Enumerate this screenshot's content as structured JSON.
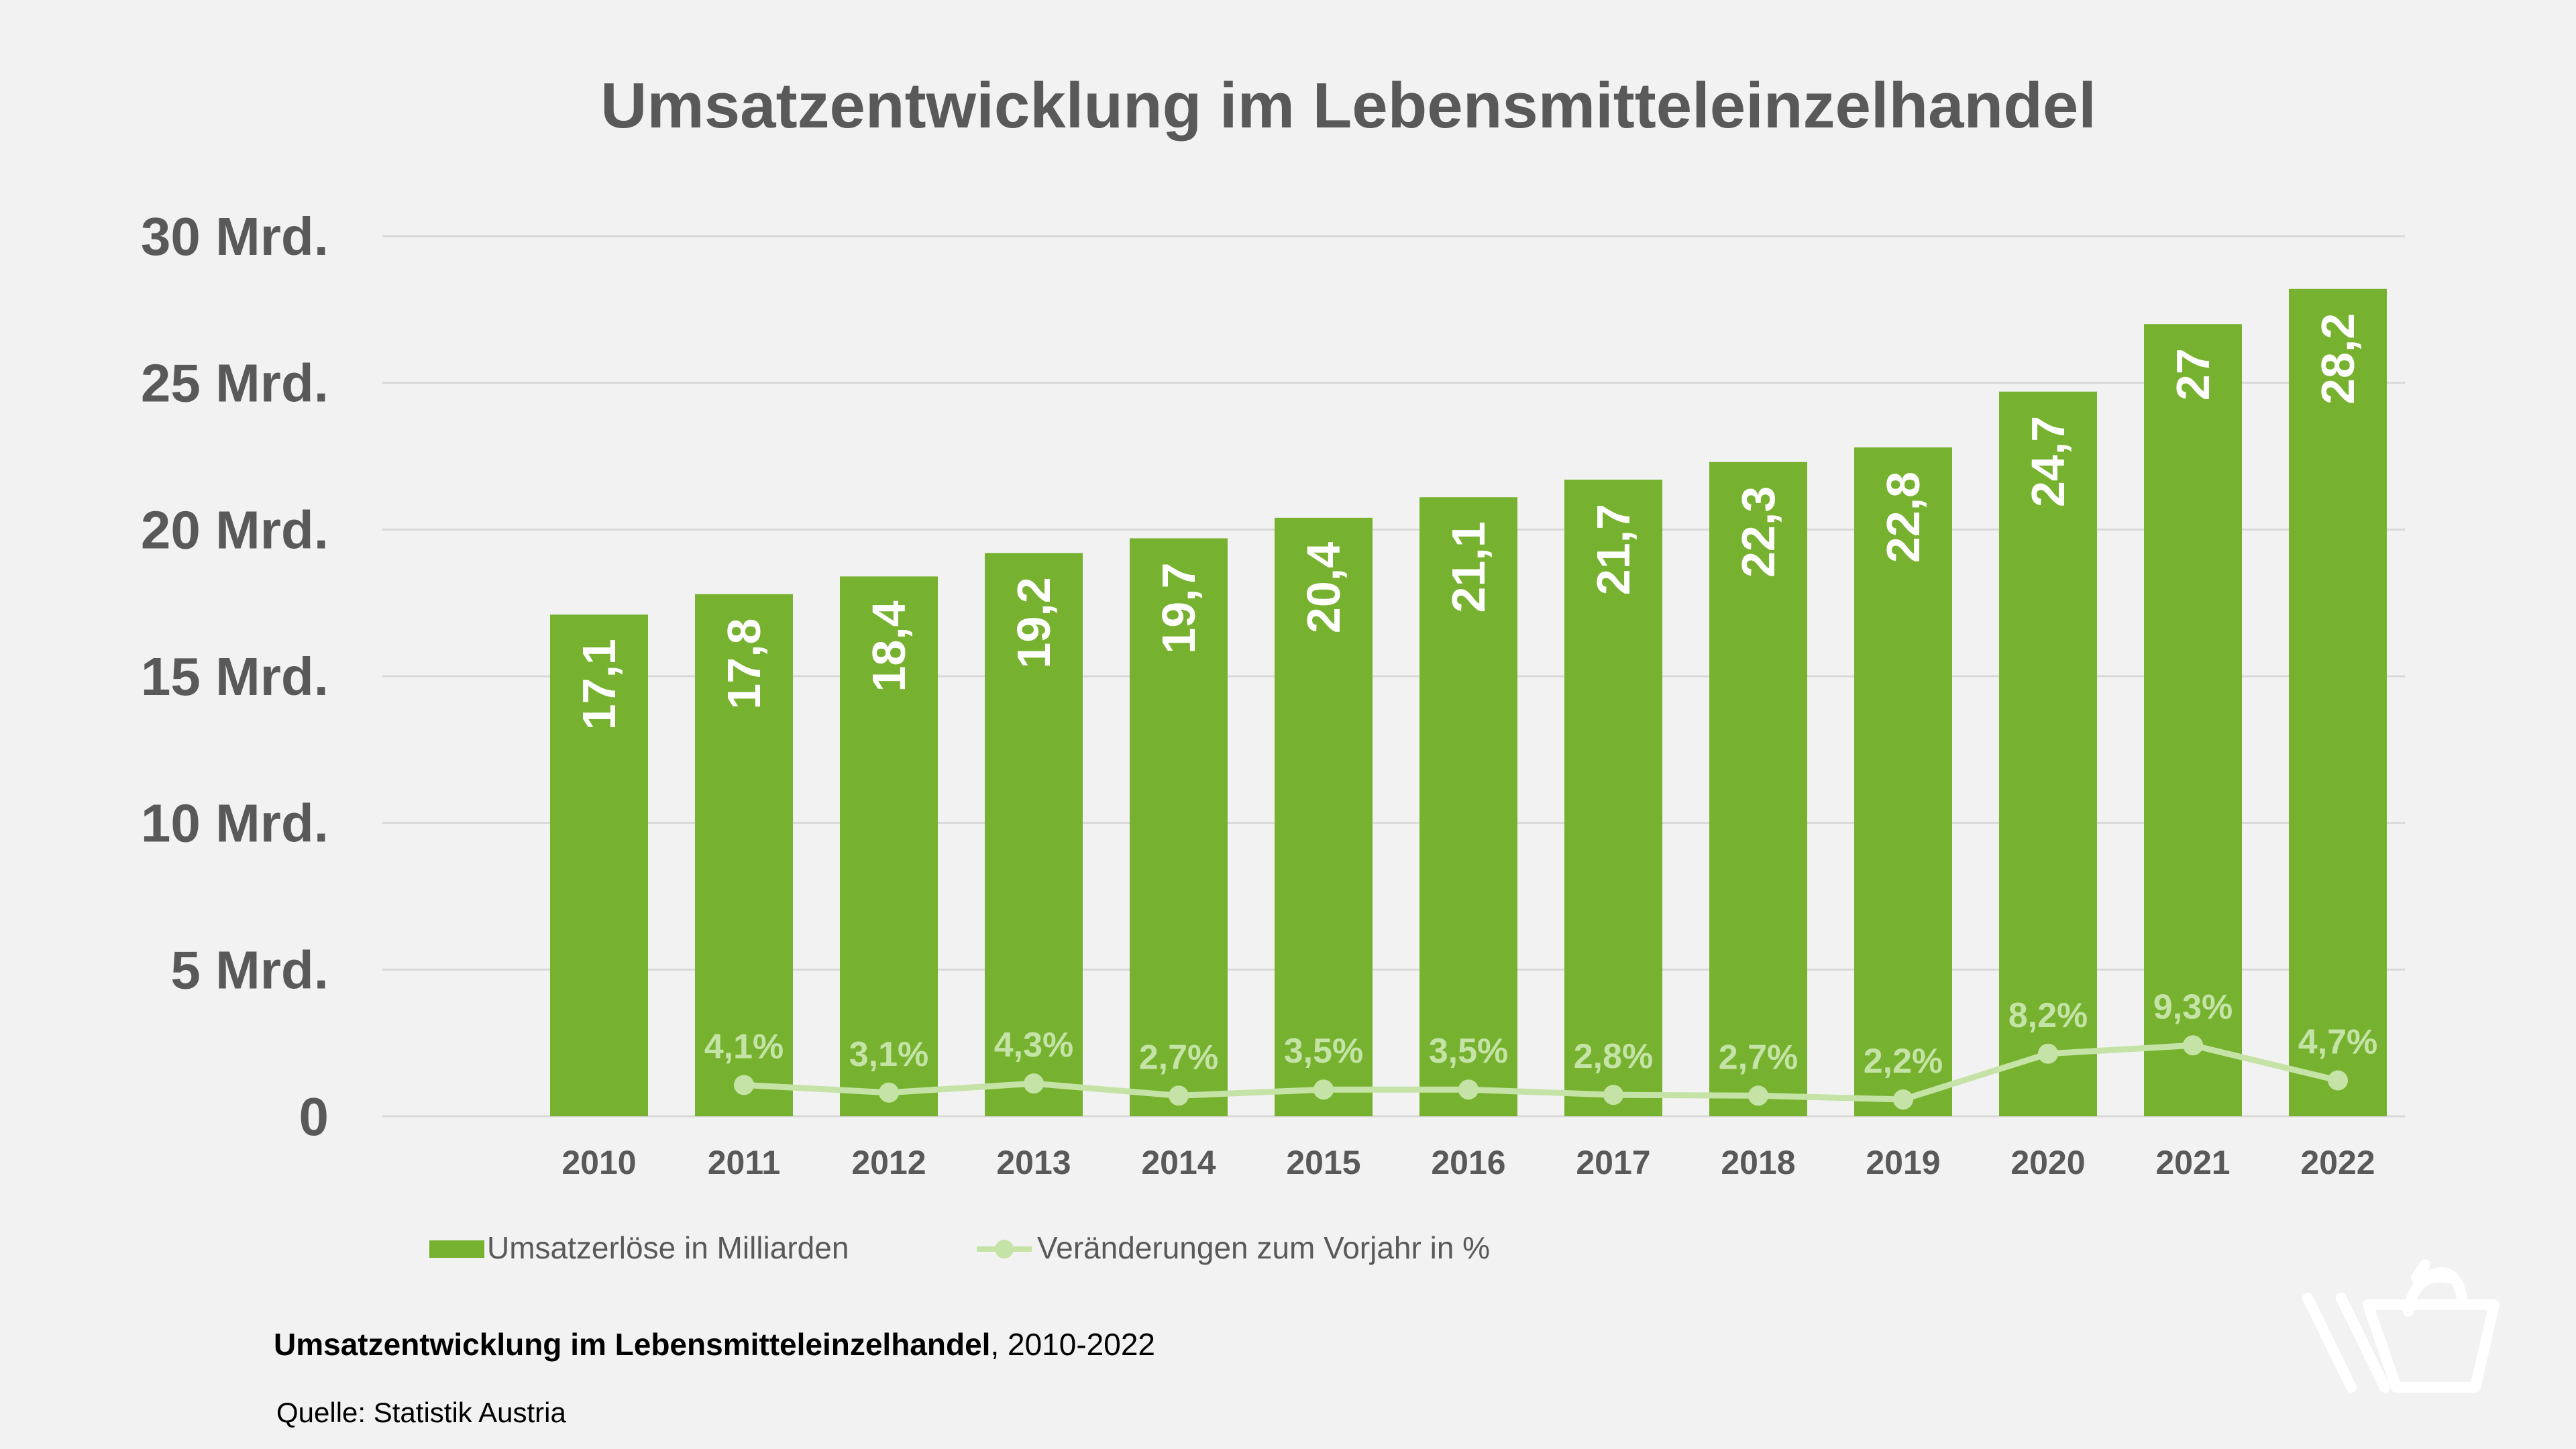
{
  "colors": {
    "bar": "#76b22f",
    "line": "#c5e3a6",
    "grid": "#d9d9d9",
    "axis_text": "#595959",
    "background": "#f2f2f2"
  },
  "legend": {
    "bars_label": "Umsatzerlöse in Milliarden",
    "line_label": "Veränderungen zum Vorjahr in %"
  },
  "caption": {
    "title_bold": "Umsatzentwicklung im Lebensmitteleinzelhandel",
    "title_rest": ", 2010-2022",
    "source": "Quelle: Statistik Austria"
  },
  "logo_icon": "shopping-basket-icon",
  "chart_data": {
    "type": "bar",
    "title": "Umsatzentwicklung im Lebensmitteleinzelhandel",
    "categories": [
      "2010",
      "2011",
      "2012",
      "2013",
      "2014",
      "2015",
      "2016",
      "2017",
      "2018",
      "2019",
      "2020",
      "2021",
      "2022"
    ],
    "ylim": [
      0,
      30
    ],
    "yticks": [
      0,
      5,
      10,
      15,
      20,
      25,
      30
    ],
    "ytick_labels": [
      "0",
      "5 Mrd.",
      "10 Mrd.",
      "15 Mrd.",
      "20 Mrd.",
      "25 Mrd.",
      "30 Mrd."
    ],
    "grid": true,
    "legend_position": "bottom-left",
    "series": [
      {
        "name": "Umsatzerlöse in Milliarden",
        "type": "bar",
        "values": [
          17.1,
          17.8,
          18.4,
          19.2,
          19.7,
          20.4,
          21.1,
          21.7,
          22.3,
          22.8,
          24.7,
          27,
          28.2
        ],
        "labels": [
          "17,1",
          "17,8",
          "18,4",
          "19,2",
          "19,7",
          "20,4",
          "21,1",
          "21,7",
          "22,3",
          "22,8",
          "24,7",
          "27",
          "28,2"
        ]
      },
      {
        "name": "Veränderungen zum Vorjahr in %",
        "type": "line",
        "values": [
          null,
          4.1,
          3.1,
          4.3,
          2.7,
          3.5,
          3.5,
          2.8,
          2.7,
          2.2,
          8.2,
          9.3,
          4.7
        ],
        "labels": [
          "",
          "4,1%",
          "3,1%",
          "4,3%",
          "2,7%",
          "3,5%",
          "3,5%",
          "2,8%",
          "2,7%",
          "2,2%",
          "8,2%",
          "9,3%",
          "4,7%"
        ]
      }
    ]
  }
}
